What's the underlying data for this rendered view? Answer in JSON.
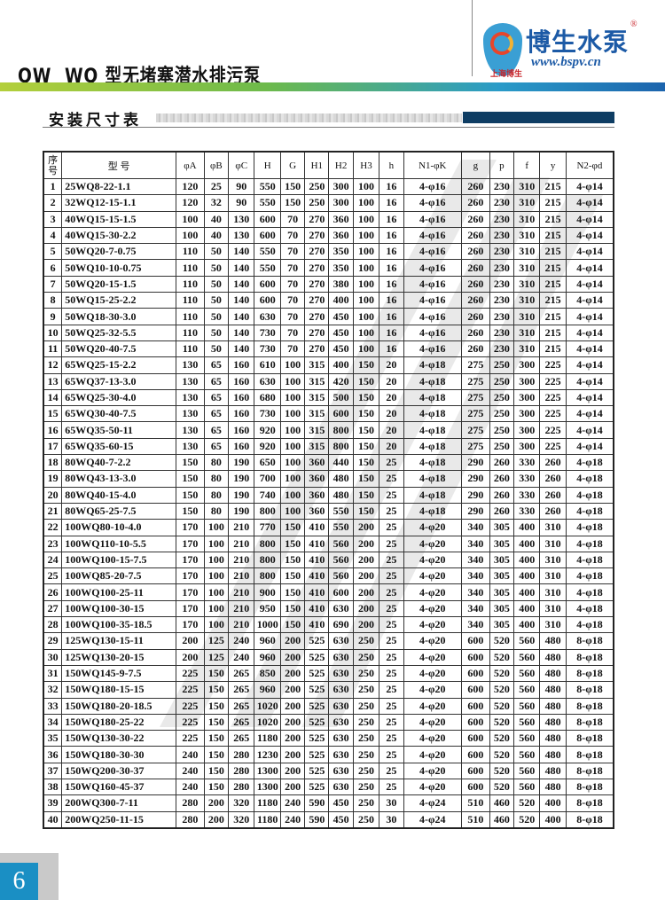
{
  "header": {
    "title": "QW  WQ 型无堵塞潜水排污泵",
    "logo": {
      "name_cn": "博生水泵",
      "url": "www.bspv.cn",
      "sub": "上海博生",
      "registered": "®"
    }
  },
  "section": {
    "title": "安装尺寸表"
  },
  "colors": {
    "brand_blue": "#1c5aa6",
    "page_box": "#1a8fc4",
    "navy_bar": "#0e3d63"
  },
  "table": {
    "headers": [
      "序号",
      "型  号",
      "φA",
      "φB",
      "φC",
      "H",
      "G",
      "H1",
      "H2",
      "H3",
      "h",
      "N1-φK",
      "g",
      "p",
      "f",
      "y",
      "N2-φd"
    ],
    "rows": [
      [
        "1",
        "25WQ8-22-1.1",
        "120",
        "25",
        "90",
        "550",
        "150",
        "250",
        "300",
        "100",
        "16",
        "4-φ16",
        "260",
        "230",
        "310",
        "215",
        "4-φ14"
      ],
      [
        "2",
        "32WQ12-15-1.1",
        "120",
        "32",
        "90",
        "550",
        "150",
        "250",
        "300",
        "100",
        "16",
        "4-φ16",
        "260",
        "230",
        "310",
        "215",
        "4-φ14"
      ],
      [
        "3",
        "40WQ15-15-1.5",
        "100",
        "40",
        "130",
        "600",
        "70",
        "270",
        "360",
        "100",
        "16",
        "4-φ16",
        "260",
        "230",
        "310",
        "215",
        "4-φ14"
      ],
      [
        "4",
        "40WQ15-30-2.2",
        "100",
        "40",
        "130",
        "600",
        "70",
        "270",
        "360",
        "100",
        "16",
        "4-φ16",
        "260",
        "230",
        "310",
        "215",
        "4-φ14"
      ],
      [
        "5",
        "50WQ20-7-0.75",
        "110",
        "50",
        "140",
        "550",
        "70",
        "270",
        "350",
        "100",
        "16",
        "4-φ16",
        "260",
        "230",
        "310",
        "215",
        "4-φ14"
      ],
      [
        "6",
        "50WQ10-10-0.75",
        "110",
        "50",
        "140",
        "550",
        "70",
        "270",
        "350",
        "100",
        "16",
        "4-φ16",
        "260",
        "230",
        "310",
        "215",
        "4-φ14"
      ],
      [
        "7",
        "50WQ20-15-1.5",
        "110",
        "50",
        "140",
        "600",
        "70",
        "270",
        "380",
        "100",
        "16",
        "4-φ16",
        "260",
        "230",
        "310",
        "215",
        "4-φ14"
      ],
      [
        "8",
        "50WQ15-25-2.2",
        "110",
        "50",
        "140",
        "600",
        "70",
        "270",
        "400",
        "100",
        "16",
        "4-φ16",
        "260",
        "230",
        "310",
        "215",
        "4-φ14"
      ],
      [
        "9",
        "50WQ18-30-3.0",
        "110",
        "50",
        "140",
        "630",
        "70",
        "270",
        "450",
        "100",
        "16",
        "4-φ16",
        "260",
        "230",
        "310",
        "215",
        "4-φ14"
      ],
      [
        "10",
        "50WQ25-32-5.5",
        "110",
        "50",
        "140",
        "730",
        "70",
        "270",
        "450",
        "100",
        "16",
        "4-φ16",
        "260",
        "230",
        "310",
        "215",
        "4-φ14"
      ],
      [
        "11",
        "50WQ20-40-7.5",
        "110",
        "50",
        "140",
        "730",
        "70",
        "270",
        "450",
        "100",
        "16",
        "4-φ16",
        "260",
        "230",
        "310",
        "215",
        "4-φ14"
      ],
      [
        "12",
        "65WQ25-15-2.2",
        "130",
        "65",
        "160",
        "610",
        "100",
        "315",
        "400",
        "150",
        "20",
        "4-φ18",
        "275",
        "250",
        "300",
        "225",
        "4-φ14"
      ],
      [
        "13",
        "65WQ37-13-3.0",
        "130",
        "65",
        "160",
        "630",
        "100",
        "315",
        "420",
        "150",
        "20",
        "4-φ18",
        "275",
        "250",
        "300",
        "225",
        "4-φ14"
      ],
      [
        "14",
        "65WQ25-30-4.0",
        "130",
        "65",
        "160",
        "680",
        "100",
        "315",
        "500",
        "150",
        "20",
        "4-φ18",
        "275",
        "250",
        "300",
        "225",
        "4-φ14"
      ],
      [
        "15",
        "65WQ30-40-7.5",
        "130",
        "65",
        "160",
        "730",
        "100",
        "315",
        "600",
        "150",
        "20",
        "4-φ18",
        "275",
        "250",
        "300",
        "225",
        "4-φ14"
      ],
      [
        "16",
        "65WQ35-50-11",
        "130",
        "65",
        "160",
        "920",
        "100",
        "315",
        "800",
        "150",
        "20",
        "4-φ18",
        "275",
        "250",
        "300",
        "225",
        "4-φ14"
      ],
      [
        "17",
        "65WQ35-60-15",
        "130",
        "65",
        "160",
        "920",
        "100",
        "315",
        "800",
        "150",
        "20",
        "4-φ18",
        "275",
        "250",
        "300",
        "225",
        "4-φ14"
      ],
      [
        "18",
        "80WQ40-7-2.2",
        "150",
        "80",
        "190",
        "650",
        "100",
        "360",
        "440",
        "150",
        "25",
        "4-φ18",
        "290",
        "260",
        "330",
        "260",
        "4-φ18"
      ],
      [
        "19",
        "80WQ43-13-3.0",
        "150",
        "80",
        "190",
        "700",
        "100",
        "360",
        "480",
        "150",
        "25",
        "4-φ18",
        "290",
        "260",
        "330",
        "260",
        "4-φ18"
      ],
      [
        "20",
        "80WQ40-15-4.0",
        "150",
        "80",
        "190",
        "740",
        "100",
        "360",
        "480",
        "150",
        "25",
        "4-φ18",
        "290",
        "260",
        "330",
        "260",
        "4-φ18"
      ],
      [
        "21",
        "80WQ65-25-7.5",
        "150",
        "80",
        "190",
        "800",
        "100",
        "360",
        "550",
        "150",
        "25",
        "4-φ18",
        "290",
        "260",
        "330",
        "260",
        "4-φ18"
      ],
      [
        "22",
        "100WQ80-10-4.0",
        "170",
        "100",
        "210",
        "770",
        "150",
        "410",
        "550",
        "200",
        "25",
        "4-φ20",
        "340",
        "305",
        "400",
        "310",
        "4-φ18"
      ],
      [
        "23",
        "100WQ110-10-5.5",
        "170",
        "100",
        "210",
        "800",
        "150",
        "410",
        "560",
        "200",
        "25",
        "4-φ20",
        "340",
        "305",
        "400",
        "310",
        "4-φ18"
      ],
      [
        "24",
        "100WQ100-15-7.5",
        "170",
        "100",
        "210",
        "800",
        "150",
        "410",
        "560",
        "200",
        "25",
        "4-φ20",
        "340",
        "305",
        "400",
        "310",
        "4-φ18"
      ],
      [
        "25",
        "100WQ85-20-7.5",
        "170",
        "100",
        "210",
        "800",
        "150",
        "410",
        "560",
        "200",
        "25",
        "4-φ20",
        "340",
        "305",
        "400",
        "310",
        "4-φ18"
      ],
      [
        "26",
        "100WQ100-25-11",
        "170",
        "100",
        "210",
        "900",
        "150",
        "410",
        "600",
        "200",
        "25",
        "4-φ20",
        "340",
        "305",
        "400",
        "310",
        "4-φ18"
      ],
      [
        "27",
        "100WQ100-30-15",
        "170",
        "100",
        "210",
        "950",
        "150",
        "410",
        "630",
        "200",
        "25",
        "4-φ20",
        "340",
        "305",
        "400",
        "310",
        "4-φ18"
      ],
      [
        "28",
        "100WQ100-35-18.5",
        "170",
        "100",
        "210",
        "1000",
        "150",
        "410",
        "690",
        "200",
        "25",
        "4-φ20",
        "340",
        "305",
        "400",
        "310",
        "4-φ18"
      ],
      [
        "29",
        "125WQ130-15-11",
        "200",
        "125",
        "240",
        "960",
        "200",
        "525",
        "630",
        "250",
        "25",
        "4-φ20",
        "600",
        "520",
        "560",
        "480",
        "8-φ18"
      ],
      [
        "30",
        "125WQ130-20-15",
        "200",
        "125",
        "240",
        "960",
        "200",
        "525",
        "630",
        "250",
        "25",
        "4-φ20",
        "600",
        "520",
        "560",
        "480",
        "8-φ18"
      ],
      [
        "31",
        "150WQ145-9-7.5",
        "225",
        "150",
        "265",
        "850",
        "200",
        "525",
        "630",
        "250",
        "25",
        "4-φ20",
        "600",
        "520",
        "560",
        "480",
        "8-φ18"
      ],
      [
        "32",
        "150WQ180-15-15",
        "225",
        "150",
        "265",
        "960",
        "200",
        "525",
        "630",
        "250",
        "25",
        "4-φ20",
        "600",
        "520",
        "560",
        "480",
        "8-φ18"
      ],
      [
        "33",
        "150WQ180-20-18.5",
        "225",
        "150",
        "265",
        "1020",
        "200",
        "525",
        "630",
        "250",
        "25",
        "4-φ20",
        "600",
        "520",
        "560",
        "480",
        "8-φ18"
      ],
      [
        "34",
        "150WQ180-25-22",
        "225",
        "150",
        "265",
        "1020",
        "200",
        "525",
        "630",
        "250",
        "25",
        "4-φ20",
        "600",
        "520",
        "560",
        "480",
        "8-φ18"
      ],
      [
        "35",
        "150WQ130-30-22",
        "225",
        "150",
        "265",
        "1180",
        "200",
        "525",
        "630",
        "250",
        "25",
        "4-φ20",
        "600",
        "520",
        "560",
        "480",
        "8-φ18"
      ],
      [
        "36",
        "150WQ180-30-30",
        "240",
        "150",
        "280",
        "1230",
        "200",
        "525",
        "630",
        "250",
        "25",
        "4-φ20",
        "600",
        "520",
        "560",
        "480",
        "8-φ18"
      ],
      [
        "37",
        "150WQ200-30-37",
        "240",
        "150",
        "280",
        "1300",
        "200",
        "525",
        "630",
        "250",
        "25",
        "4-φ20",
        "600",
        "520",
        "560",
        "480",
        "8-φ18"
      ],
      [
        "38",
        "150WQ160-45-37",
        "240",
        "150",
        "280",
        "1300",
        "200",
        "525",
        "630",
        "250",
        "25",
        "4-φ20",
        "600",
        "520",
        "560",
        "480",
        "8-φ18"
      ],
      [
        "39",
        "200WQ300-7-11",
        "280",
        "200",
        "320",
        "1180",
        "240",
        "590",
        "450",
        "250",
        "30",
        "4-φ24",
        "510",
        "460",
        "520",
        "400",
        "8-φ18"
      ],
      [
        "40",
        "200WQ250-11-15",
        "280",
        "200",
        "320",
        "1180",
        "240",
        "590",
        "450",
        "250",
        "30",
        "4-φ24",
        "510",
        "460",
        "520",
        "400",
        "8-φ18"
      ]
    ]
  },
  "footer": {
    "page_number": "6"
  }
}
